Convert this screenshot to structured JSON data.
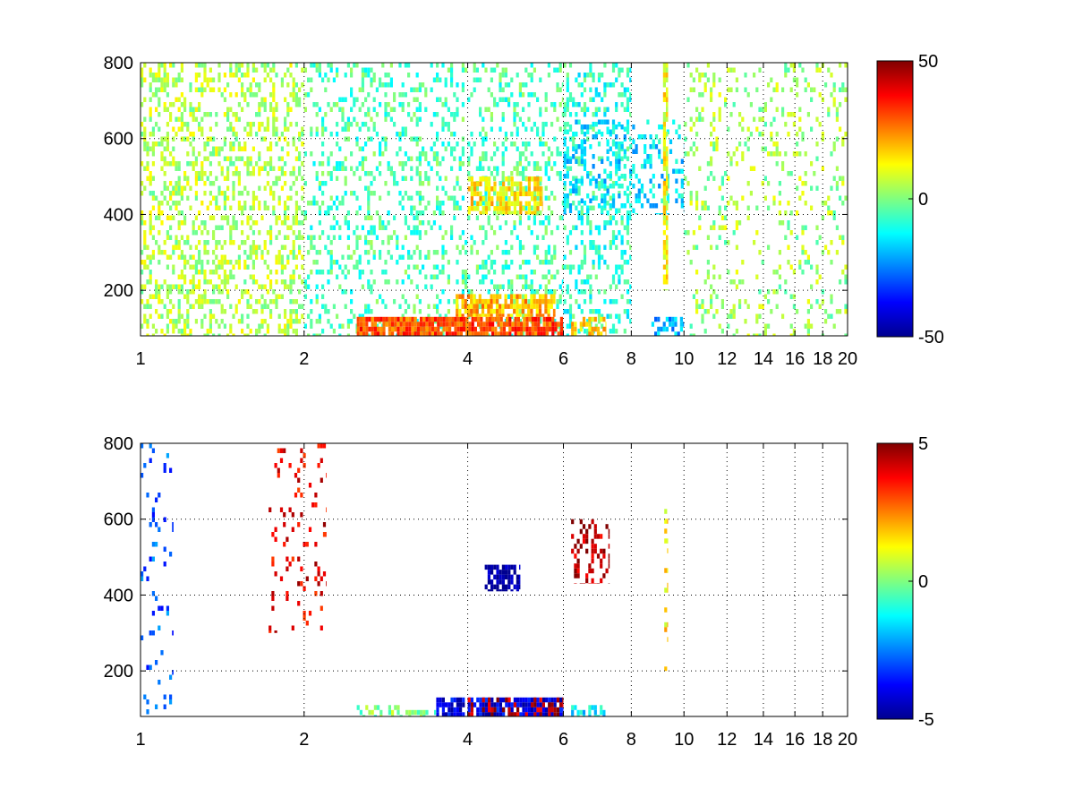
{
  "figure": {
    "background": "#ffffff",
    "colormap": "jet",
    "colormap_stops": [
      "#00008f",
      "#0000ff",
      "#00ffff",
      "#ffff00",
      "#ff0000",
      "#800000"
    ]
  },
  "chart_data": [
    {
      "type": "heatmap",
      "title": "",
      "xlabel": "",
      "ylabel": "",
      "xscale": "log",
      "xlim": [
        1,
        20
      ],
      "ylim": [
        80,
        800
      ],
      "xticks": [
        1,
        2,
        4,
        6,
        8,
        10,
        12,
        14,
        16,
        18,
        20
      ],
      "xtick_labels": [
        "1",
        "2",
        "4",
        "6",
        "8",
        "10",
        "12",
        "14",
        "16",
        "18",
        "20"
      ],
      "yticks": [
        200,
        400,
        600,
        800
      ],
      "ytick_labels": [
        "200",
        "400",
        "600",
        "800"
      ],
      "grid": "dotted",
      "colorbar": {
        "clim": [
          -50,
          50
        ],
        "ticks": [
          50,
          0,
          -50
        ],
        "tick_labels": [
          "50",
          "0",
          "-50"
        ]
      },
      "regions": [
        {
          "x": [
            1.0,
            2.0
          ],
          "y": [
            80,
            800
          ],
          "value": 5,
          "density": 0.35
        },
        {
          "x": [
            2.0,
            6.0
          ],
          "y": [
            80,
            800
          ],
          "value": -5,
          "density": 0.25
        },
        {
          "x": [
            2.5,
            6.0
          ],
          "y": [
            80,
            130
          ],
          "value": 30,
          "density": 0.85
        },
        {
          "x": [
            3.8,
            5.8
          ],
          "y": [
            130,
            190
          ],
          "value": 20,
          "density": 0.7
        },
        {
          "x": [
            4.0,
            5.5
          ],
          "y": [
            400,
            500
          ],
          "value": 15,
          "density": 0.6
        },
        {
          "x": [
            6.0,
            8.0
          ],
          "y": [
            80,
            800
          ],
          "value": -8,
          "density": 0.3
        },
        {
          "x": [
            6.2,
            7.2
          ],
          "y": [
            80,
            130
          ],
          "value": 18,
          "density": 0.6
        },
        {
          "x": [
            6.0,
            10.0
          ],
          "y": [
            400,
            650
          ],
          "value": -15,
          "density": 0.3
        },
        {
          "x": [
            8.5,
            10.0
          ],
          "y": [
            80,
            130
          ],
          "value": -20,
          "density": 0.5
        },
        {
          "x": [
            9.15,
            9.35
          ],
          "y": [
            200,
            800
          ],
          "value": 12,
          "density": 0.75
        },
        {
          "x": [
            10.0,
            20.0
          ],
          "y": [
            80,
            800
          ],
          "value": 3,
          "density": 0.16
        }
      ]
    },
    {
      "type": "heatmap",
      "title": "",
      "xlabel": "",
      "ylabel": "",
      "xscale": "log",
      "xlim": [
        1,
        20
      ],
      "ylim": [
        80,
        800
      ],
      "xticks": [
        1,
        2,
        4,
        6,
        8,
        10,
        12,
        14,
        16,
        18,
        20
      ],
      "xtick_labels": [
        "1",
        "2",
        "4",
        "6",
        "8",
        "10",
        "12",
        "14",
        "16",
        "18",
        "20"
      ],
      "yticks": [
        200,
        400,
        600,
        800
      ],
      "ytick_labels": [
        "200",
        "400",
        "600",
        "800"
      ],
      "grid": "dotted",
      "colorbar": {
        "clim": [
          -5,
          5
        ],
        "ticks": [
          5,
          0,
          -5
        ],
        "tick_labels": [
          "5",
          "0",
          "-5"
        ]
      },
      "regions": [
        {
          "x": [
            1.0,
            1.15
          ],
          "y": [
            80,
            800
          ],
          "value": -3,
          "density": 0.08
        },
        {
          "x": [
            1.7,
            2.2
          ],
          "y": [
            300,
            800
          ],
          "value": 4,
          "density": 0.12
        },
        {
          "x": [
            4.3,
            5.0
          ],
          "y": [
            410,
            480
          ],
          "value": -5,
          "density": 0.7
        },
        {
          "x": [
            3.5,
            6.0
          ],
          "y": [
            80,
            130
          ],
          "value": -4,
          "density": 0.8
        },
        {
          "x": [
            4.0,
            6.0
          ],
          "y": [
            80,
            130
          ],
          "value": 4.5,
          "density": 0.35
        },
        {
          "x": [
            2.5,
            3.5
          ],
          "y": [
            80,
            110
          ],
          "value": 0,
          "density": 0.5
        },
        {
          "x": [
            6.2,
            7.2
          ],
          "y": [
            80,
            110
          ],
          "value": -1.5,
          "density": 0.5
        },
        {
          "x": [
            6.2,
            7.3
          ],
          "y": [
            430,
            600
          ],
          "value": 4.5,
          "density": 0.35
        },
        {
          "x": [
            9.2,
            9.35
          ],
          "y": [
            200,
            640
          ],
          "value": 1.5,
          "density": 0.3
        }
      ]
    }
  ]
}
